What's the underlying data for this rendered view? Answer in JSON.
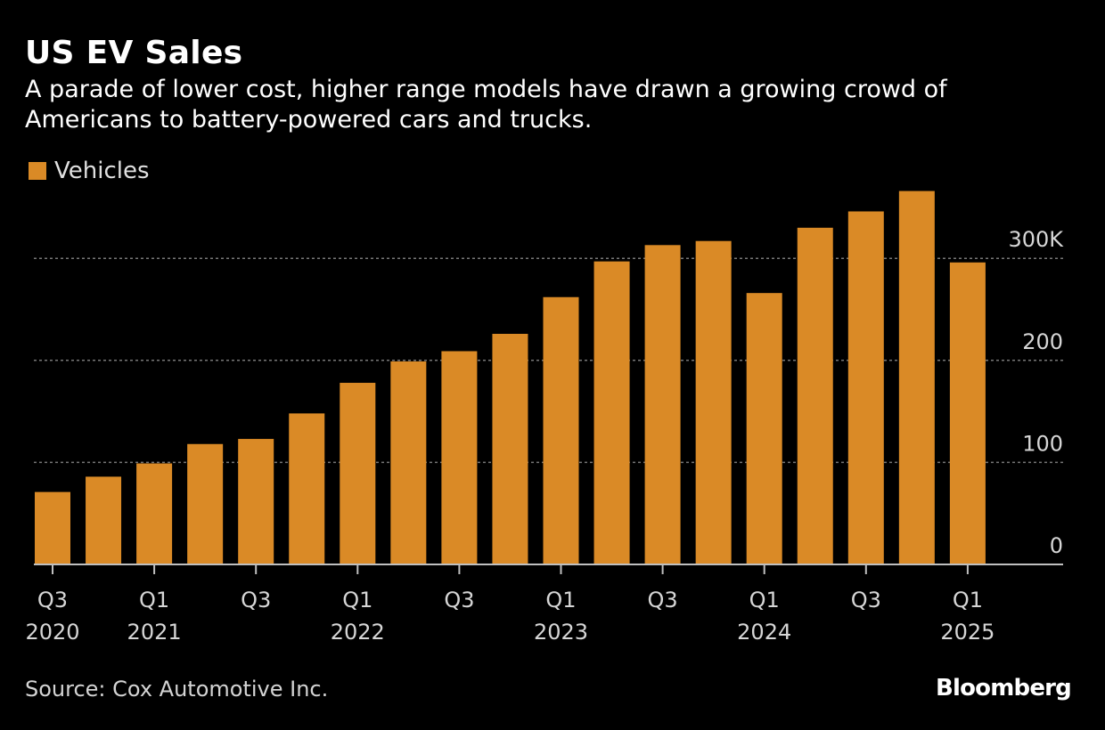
{
  "chart_data": {
    "type": "bar",
    "title": "US EV Sales",
    "subtitle": "A parade of lower cost, higher range models have drawn a growing crowd of Americans to battery-powered cars and trucks.",
    "categories": [
      "Q3 2020",
      "Q4 2020",
      "Q1 2021",
      "Q2 2021",
      "Q3 2021",
      "Q4 2021",
      "Q1 2022",
      "Q2 2022",
      "Q3 2022",
      "Q4 2022",
      "Q1 2023",
      "Q2 2023",
      "Q3 2023",
      "Q4 2023",
      "Q1 2024",
      "Q2 2024",
      "Q3 2024",
      "Q4 2024",
      "Q1 2025"
    ],
    "series": [
      {
        "name": "Vehicles",
        "values": [
          71,
          86,
          99,
          118,
          123,
          148,
          178,
          199,
          209,
          226,
          262,
          297,
          313,
          317,
          266,
          330,
          346,
          366,
          296
        ]
      }
    ],
    "ylim": [
      0,
      366
    ],
    "y_ticks": [
      {
        "value": 0,
        "label": "0"
      },
      {
        "value": 100,
        "label": "100"
      },
      {
        "value": 200,
        "label": "200"
      },
      {
        "value": 300,
        "label": "300K"
      }
    ],
    "x_tick_labels": [
      {
        "index": 0,
        "line1": "Q3",
        "line2": "2020"
      },
      {
        "index": 2,
        "line1": "Q1",
        "line2": "2021"
      },
      {
        "index": 4,
        "line1": "Q3",
        "line2": ""
      },
      {
        "index": 6,
        "line1": "Q1",
        "line2": "2022"
      },
      {
        "index": 8,
        "line1": "Q3",
        "line2": ""
      },
      {
        "index": 10,
        "line1": "Q1",
        "line2": "2023"
      },
      {
        "index": 12,
        "line1": "Q3",
        "line2": ""
      },
      {
        "index": 14,
        "line1": "Q1",
        "line2": "2024"
      },
      {
        "index": 16,
        "line1": "Q3",
        "line2": ""
      },
      {
        "index": 18,
        "line1": "Q1",
        "line2": "2025"
      }
    ],
    "grid": true,
    "y_axis_side": "right",
    "legend_position": "top-left"
  },
  "colors": {
    "bar": "#DA8A26",
    "background": "#000000",
    "grid": "#777777",
    "axis": "#bfbfbf",
    "text": "#ffffff"
  },
  "source": "Source: Cox Automotive Inc.",
  "logo": "Bloomberg"
}
